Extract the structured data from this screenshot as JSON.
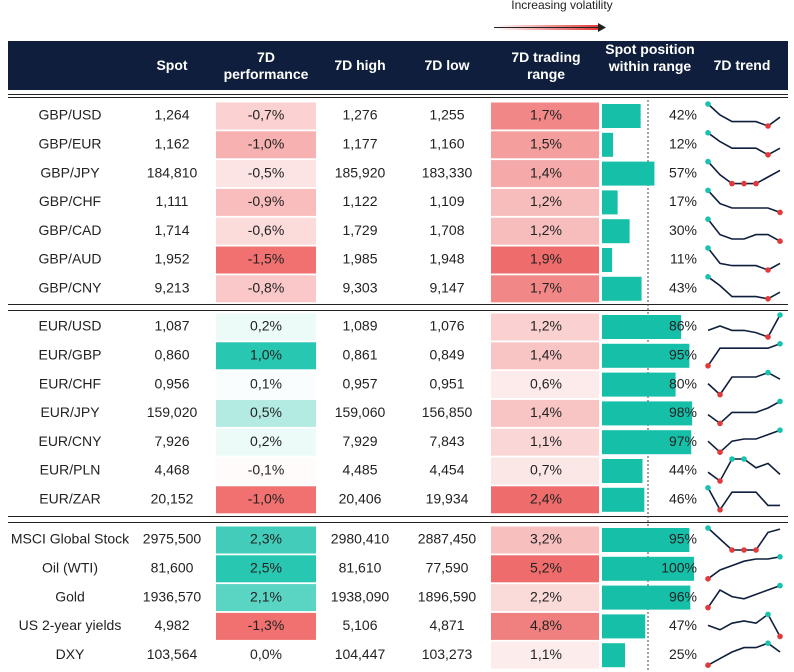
{
  "legend": {
    "label": "Increasing volatility"
  },
  "header": [
    "Spot",
    "7D performance",
    "7D high",
    "7D low",
    "7D trading range",
    "Spot position within range",
    "7D trend"
  ],
  "groups": [
    [
      {
        "label": "GBP/USD",
        "spot": "1,264",
        "performance": {
          "value": -0.7,
          "label": "-0,7%"
        },
        "high": "1,276",
        "low": "1,255",
        "range": {
          "value": 1.7,
          "label": "1,7%"
        },
        "position": {
          "value": 42,
          "label": "42%"
        },
        "trend": [
          10,
          5,
          2,
          2,
          2,
          0,
          4
        ]
      },
      {
        "label": "GBP/EUR",
        "spot": "1,162",
        "performance": {
          "value": -1.0,
          "label": "-1,0%"
        },
        "high": "1,177",
        "low": "1,160",
        "range": {
          "value": 1.5,
          "label": "1,5%"
        },
        "position": {
          "value": 12,
          "label": "12%"
        },
        "trend": [
          10,
          6,
          3,
          3,
          3,
          0,
          3
        ]
      },
      {
        "label": "GBP/JPY",
        "spot": "184,810",
        "performance": {
          "value": -0.5,
          "label": "-0,5%"
        },
        "high": "185,920",
        "low": "183,330",
        "range": {
          "value": 1.4,
          "label": "1,4%"
        },
        "position": {
          "value": 57,
          "label": "57%"
        },
        "trend": [
          10,
          4,
          0,
          0,
          0,
          3,
          6
        ]
      },
      {
        "label": "GBP/CHF",
        "spot": "1,111",
        "performance": {
          "value": -0.9,
          "label": "-0,9%"
        },
        "high": "1,122",
        "low": "1,109",
        "range": {
          "value": 1.2,
          "label": "1,2%"
        },
        "position": {
          "value": 17,
          "label": "17%"
        },
        "trend": [
          10,
          4,
          2,
          2,
          2,
          2,
          0
        ]
      },
      {
        "label": "GBP/CAD",
        "spot": "1,714",
        "performance": {
          "value": -0.6,
          "label": "-0,6%"
        },
        "high": "1,729",
        "low": "1,708",
        "range": {
          "value": 1.2,
          "label": "1,2%"
        },
        "position": {
          "value": 30,
          "label": "30%"
        },
        "trend": [
          10,
          3,
          1,
          1,
          3,
          3,
          0
        ]
      },
      {
        "label": "GBP/AUD",
        "spot": "1,952",
        "performance": {
          "value": -1.5,
          "label": "-1,5%"
        },
        "high": "1,985",
        "low": "1,948",
        "range": {
          "value": 1.9,
          "label": "1,9%"
        },
        "position": {
          "value": 11,
          "label": "11%"
        },
        "trend": [
          10,
          3,
          2,
          2,
          2,
          0,
          3
        ]
      },
      {
        "label": "GBP/CNY",
        "spot": "9,213",
        "performance": {
          "value": -0.8,
          "label": "-0,8%"
        },
        "high": "9,303",
        "low": "9,147",
        "range": {
          "value": 1.7,
          "label": "1,7%"
        },
        "position": {
          "value": 43,
          "label": "43%"
        },
        "trend": [
          10,
          6,
          1,
          1,
          1,
          0,
          3
        ]
      }
    ],
    [
      {
        "label": "EUR/USD",
        "spot": "1,087",
        "performance": {
          "value": 0.2,
          "label": "0,2%"
        },
        "high": "1,089",
        "low": "1,076",
        "range": {
          "value": 1.2,
          "label": "1,2%"
        },
        "position": {
          "value": 86,
          "label": "86%"
        },
        "trend": [
          3,
          5,
          3,
          3,
          2,
          0,
          10
        ]
      },
      {
        "label": "EUR/GBP",
        "spot": "0,860",
        "performance": {
          "value": 1.0,
          "label": "1,0%"
        },
        "high": "0,861",
        "low": "0,849",
        "range": {
          "value": 1.4,
          "label": "1,4%"
        },
        "position": {
          "value": 95,
          "label": "95%"
        },
        "trend": [
          0,
          8,
          8,
          8,
          8,
          8,
          10
        ]
      },
      {
        "label": "EUR/CHF",
        "spot": "0,956",
        "performance": {
          "value": 0.1,
          "label": "0,1%"
        },
        "high": "0,957",
        "low": "0,951",
        "range": {
          "value": 0.6,
          "label": "0,6%"
        },
        "position": {
          "value": 80,
          "label": "80%"
        },
        "trend": [
          5,
          0,
          8,
          8,
          8,
          10,
          7
        ]
      },
      {
        "label": "EUR/JPY",
        "spot": "159,020",
        "performance": {
          "value": 0.5,
          "label": "0,5%"
        },
        "high": "159,060",
        "low": "156,850",
        "range": {
          "value": 1.4,
          "label": "1,4%"
        },
        "position": {
          "value": 98,
          "label": "98%"
        },
        "trend": [
          4,
          0,
          5,
          5,
          5,
          7,
          10
        ]
      },
      {
        "label": "EUR/CNY",
        "spot": "7,926",
        "performance": {
          "value": 0.2,
          "label": "0,2%"
        },
        "high": "7,929",
        "low": "7,843",
        "range": {
          "value": 1.1,
          "label": "1,1%"
        },
        "position": {
          "value": 97,
          "label": "97%"
        },
        "trend": [
          5,
          0,
          5,
          6,
          6,
          8,
          10
        ]
      },
      {
        "label": "EUR/PLN",
        "spot": "4,468",
        "performance": {
          "value": -0.1,
          "label": "-0,1%"
        },
        "high": "4,485",
        "low": "4,454",
        "range": {
          "value": 0.7,
          "label": "0,7%"
        },
        "position": {
          "value": 44,
          "label": "44%"
        },
        "trend": [
          4,
          0,
          10,
          10,
          6,
          8,
          3
        ]
      },
      {
        "label": "EUR/ZAR",
        "spot": "20,152",
        "performance": {
          "value": -1.0,
          "label": "-1,0%"
        },
        "high": "20,406",
        "low": "19,934",
        "range": {
          "value": 2.4,
          "label": "2,4%"
        },
        "position": {
          "value": 46,
          "label": "46%"
        },
        "trend": [
          10,
          0,
          8,
          8,
          8,
          2,
          2
        ]
      }
    ],
    [
      {
        "label": "MSCI Global Stock",
        "spot": "2975,500",
        "performance": {
          "value": 2.3,
          "label": "2,3%"
        },
        "high": "2980,410",
        "low": "2887,450",
        "range": {
          "value": 3.2,
          "label": "3,2%"
        },
        "position": {
          "value": 95,
          "label": "95%"
        },
        "trend": [
          10,
          5,
          0,
          0,
          0,
          8,
          9.5
        ]
      },
      {
        "label": "Oil (WTI)",
        "spot": "81,600",
        "performance": {
          "value": 2.5,
          "label": "2,5%"
        },
        "high": "81,610",
        "low": "77,590",
        "range": {
          "value": 5.2,
          "label": "5,2%"
        },
        "position": {
          "value": 100,
          "label": "100%"
        },
        "trend": [
          0,
          4,
          6,
          8,
          9,
          9,
          10
        ]
      },
      {
        "label": "Gold",
        "spot": "1936,570",
        "performance": {
          "value": 2.1,
          "label": "2,1%"
        },
        "high": "1938,090",
        "low": "1896,590",
        "range": {
          "value": 2.2,
          "label": "2,2%"
        },
        "position": {
          "value": 96,
          "label": "96%"
        },
        "trend": [
          0,
          8,
          5,
          4,
          6,
          8,
          10
        ]
      },
      {
        "label": "US 2-year yields",
        "spot": "4,982",
        "performance": {
          "value": -1.3,
          "label": "-1,3%"
        },
        "high": "5,106",
        "low": "4,871",
        "range": {
          "value": 4.8,
          "label": "4,8%"
        },
        "position": {
          "value": 47,
          "label": "47%"
        },
        "trend": [
          5,
          3,
          6,
          7,
          6,
          10,
          0
        ]
      },
      {
        "label": "DXY",
        "spot": "103,564",
        "performance": {
          "value": 0.0,
          "label": "0,0%"
        },
        "high": "104,447",
        "low": "103,273",
        "range": {
          "value": 1.1,
          "label": "1,1%"
        },
        "position": {
          "value": 25,
          "label": "25%"
        },
        "trend": [
          0,
          3,
          6,
          8,
          8,
          10,
          6
        ]
      }
    ]
  ]
}
